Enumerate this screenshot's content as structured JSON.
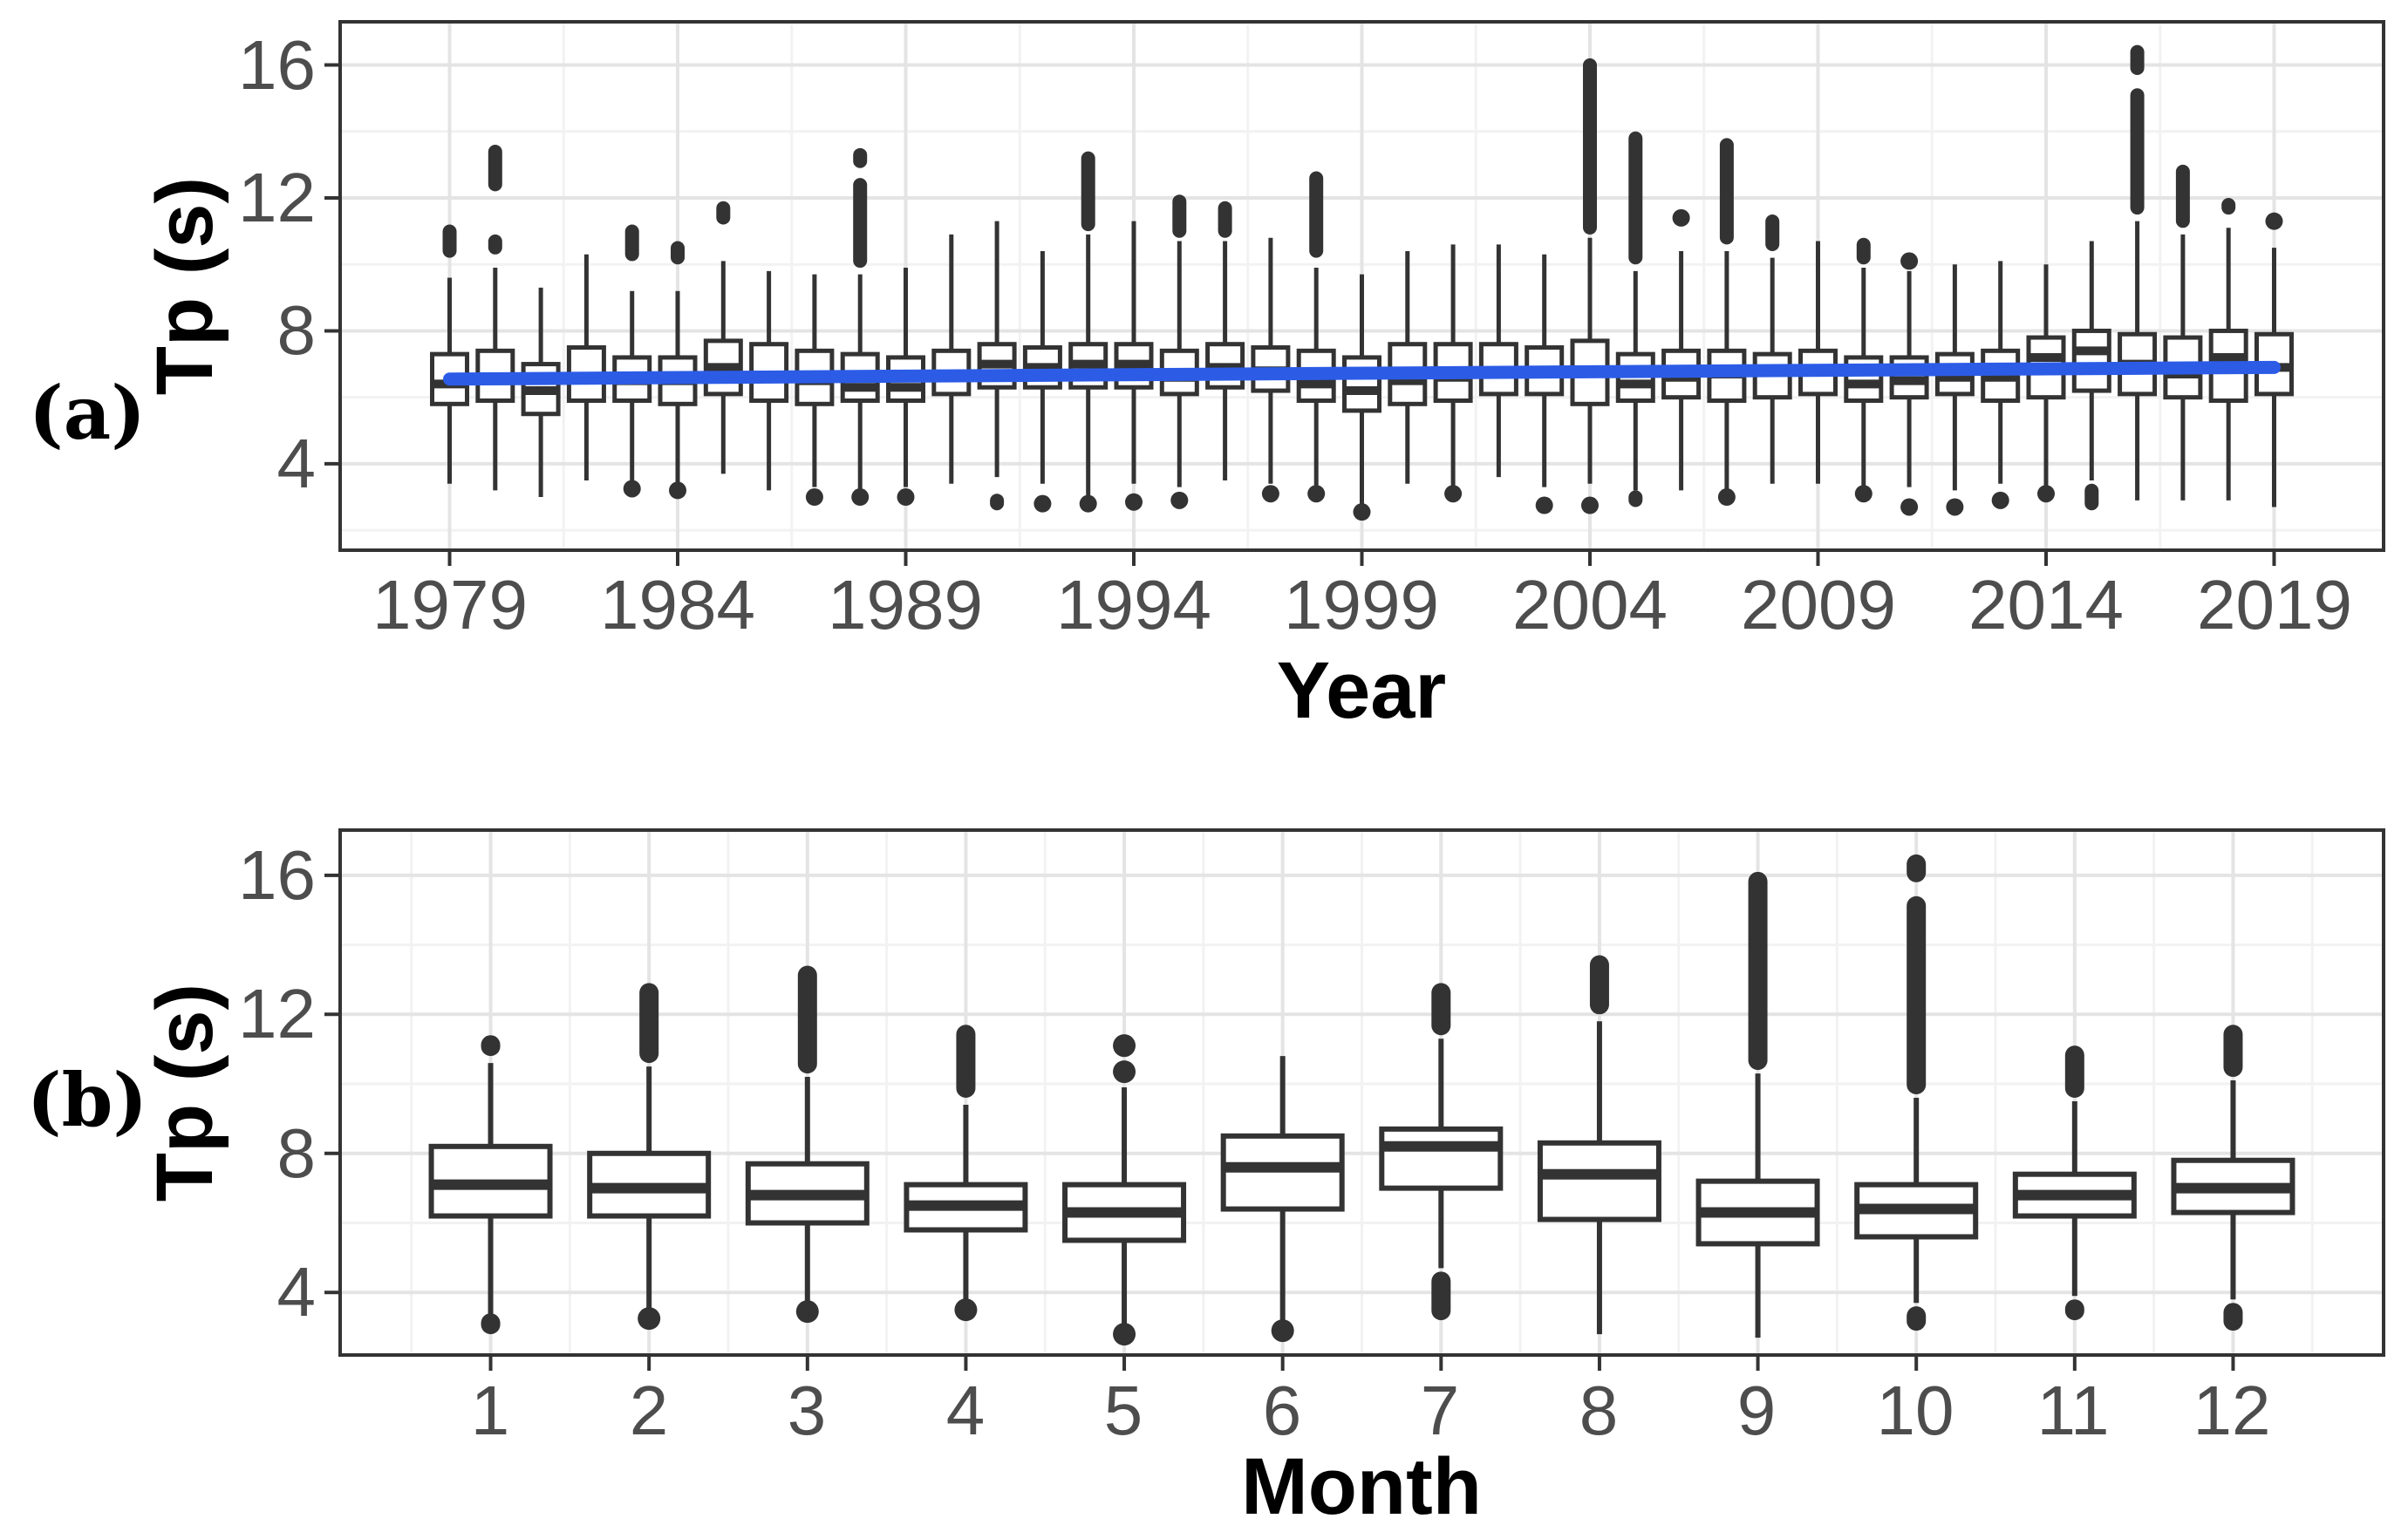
{
  "figure": {
    "background": "#FFFFFF",
    "panel_tags": {
      "a": "(a)",
      "b": "(b)"
    }
  },
  "colors": {
    "trend_blue": "#2C5CE6",
    "box_stroke": "#333333",
    "box_fill": "#FFFFFF",
    "grid_major": "#E4E4E4",
    "grid_minor": "#F2F2F2",
    "panel_border": "#333333",
    "tick_label": "#4D4D4D",
    "axis_title": "#000000"
  },
  "chart_data": [
    {
      "type": "boxplot",
      "panel": "a",
      "title": "",
      "xlabel": "Year",
      "ylabel": "Tp (s)",
      "x_axis": "continuous",
      "grid": true,
      "legend": false,
      "xlim": [
        1976.6,
        2021.4
      ],
      "ylim": [
        1.4,
        17.3
      ],
      "y_ticks": [
        16,
        12,
        8,
        4
      ],
      "y_minor_ticks": [
        14,
        10,
        6,
        2
      ],
      "x_tick_values": [
        1979,
        1984,
        1989,
        1994,
        1999,
        2004,
        2009,
        2014,
        2019
      ],
      "x_tick_labels": [
        "1979",
        "1984",
        "1989",
        "1994",
        "1999",
        "2004",
        "2009",
        "2014",
        "2019"
      ],
      "trend_line": {
        "color": "#2C5CE6",
        "x": [
          1979,
          2019
        ],
        "y": [
          6.55,
          6.9
        ]
      },
      "boxes": [
        {
          "x": 1979,
          "q1": 5.8,
          "median": 6.4,
          "q3": 7.3,
          "whisker_low": 3.4,
          "whisker_high": 9.6,
          "outliers_high": [
            [
              10.2,
              11.2
            ]
          ],
          "outliers_low": []
        },
        {
          "x": 1980,
          "q1": 5.9,
          "median": 6.5,
          "q3": 7.4,
          "whisker_low": 3.2,
          "whisker_high": 9.9,
          "outliers_high": [
            [
              10.3,
              10.9
            ],
            [
              12.2,
              13.6
            ]
          ],
          "outliers_low": []
        },
        {
          "x": 1981,
          "q1": 5.5,
          "median": 6.2,
          "q3": 7.0,
          "whisker_low": 3.0,
          "whisker_high": 9.3,
          "outliers_high": [],
          "outliers_low": []
        },
        {
          "x": 1982,
          "q1": 5.9,
          "median": 6.6,
          "q3": 7.5,
          "whisker_low": 3.5,
          "whisker_high": 10.3,
          "outliers_high": [],
          "outliers_low": []
        },
        {
          "x": 1983,
          "q1": 5.9,
          "median": 6.5,
          "q3": 7.2,
          "whisker_low": 3.3,
          "whisker_high": 9.2,
          "outliers_high": [
            [
              10.1,
              11.2
            ]
          ],
          "outliers_low": [
            [
              3.1,
              3.4
            ]
          ]
        },
        {
          "x": 1984,
          "q1": 5.8,
          "median": 6.5,
          "q3": 7.2,
          "whisker_low": 3.4,
          "whisker_high": 9.2,
          "outliers_high": [
            [
              10.0,
              10.7
            ]
          ],
          "outliers_low": [
            [
              3.1,
              3.3
            ]
          ]
        },
        {
          "x": 1985,
          "q1": 6.1,
          "median": 6.9,
          "q3": 7.7,
          "whisker_low": 3.7,
          "whisker_high": 10.1,
          "outliers_high": [
            [
              11.2,
              11.9
            ]
          ],
          "outliers_low": []
        },
        {
          "x": 1986,
          "q1": 5.9,
          "median": 6.6,
          "q3": 7.6,
          "whisker_low": 3.2,
          "whisker_high": 9.8,
          "outliers_high": [],
          "outliers_low": []
        },
        {
          "x": 1987,
          "q1": 5.8,
          "median": 6.5,
          "q3": 7.4,
          "whisker_low": 3.3,
          "whisker_high": 9.7,
          "outliers_high": [],
          "outliers_low": [
            [
              2.9,
              3.1
            ]
          ]
        },
        {
          "x": 1988,
          "q1": 5.9,
          "median": 6.3,
          "q3": 7.3,
          "whisker_low": 3.1,
          "whisker_high": 9.7,
          "outliers_high": [
            [
              9.9,
              12.6
            ],
            [
              12.9,
              13.5
            ]
          ],
          "outliers_low": [
            [
              2.9,
              3.1
            ]
          ]
        },
        {
          "x": 1989,
          "q1": 5.9,
          "median": 6.3,
          "q3": 7.2,
          "whisker_low": 3.3,
          "whisker_high": 9.9,
          "outliers_high": [],
          "outliers_low": [
            [
              2.9,
              3.1
            ]
          ]
        },
        {
          "x": 1990,
          "q1": 6.1,
          "median": 6.6,
          "q3": 7.4,
          "whisker_low": 3.4,
          "whisker_high": 10.9,
          "outliers_high": [],
          "outliers_low": []
        },
        {
          "x": 1991,
          "q1": 6.3,
          "median": 7.0,
          "q3": 7.6,
          "whisker_low": 3.6,
          "whisker_high": 11.3,
          "outliers_high": [],
          "outliers_low": [
            [
              2.6,
              3.1
            ]
          ]
        },
        {
          "x": 1992,
          "q1": 6.3,
          "median": 6.9,
          "q3": 7.5,
          "whisker_low": 3.4,
          "whisker_high": 10.4,
          "outliers_high": [],
          "outliers_low": [
            [
              2.6,
              3.0
            ]
          ]
        },
        {
          "x": 1993,
          "q1": 6.3,
          "median": 7.0,
          "q3": 7.6,
          "whisker_low": 3.0,
          "whisker_high": 10.9,
          "outliers_high": [
            [
              11.0,
              13.4
            ]
          ],
          "outliers_low": [
            [
              2.6,
              3.0
            ]
          ]
        },
        {
          "x": 1994,
          "q1": 6.3,
          "median": 7.0,
          "q3": 7.6,
          "whisker_low": 3.4,
          "whisker_high": 11.3,
          "outliers_high": [],
          "outliers_low": [
            [
              2.7,
              3.0
            ]
          ]
        },
        {
          "x": 1995,
          "q1": 6.1,
          "median": 6.6,
          "q3": 7.4,
          "whisker_low": 3.3,
          "whisker_high": 10.7,
          "outliers_high": [
            [
              10.8,
              12.1
            ]
          ],
          "outliers_low": [
            [
              2.8,
              3.0
            ]
          ]
        },
        {
          "x": 1996,
          "q1": 6.3,
          "median": 6.9,
          "q3": 7.6,
          "whisker_low": 3.5,
          "whisker_high": 10.7,
          "outliers_high": [
            [
              10.8,
              11.9
            ]
          ],
          "outliers_low": []
        },
        {
          "x": 1997,
          "q1": 6.2,
          "median": 6.8,
          "q3": 7.5,
          "whisker_low": 3.4,
          "whisker_high": 10.8,
          "outliers_high": [],
          "outliers_low": [
            [
              3.0,
              3.2
            ]
          ]
        },
        {
          "x": 1998,
          "q1": 5.9,
          "median": 6.4,
          "q3": 7.4,
          "whisker_low": 3.1,
          "whisker_high": 9.9,
          "outliers_high": [
            [
              10.2,
              12.8
            ]
          ],
          "outliers_low": [
            [
              3.0,
              3.2
            ]
          ]
        },
        {
          "x": 1999,
          "q1": 5.6,
          "median": 6.2,
          "q3": 7.2,
          "whisker_low": 2.7,
          "whisker_high": 9.7,
          "outliers_high": [],
          "outliers_low": [
            [
              2.5,
              2.6
            ]
          ]
        },
        {
          "x": 2000,
          "q1": 5.8,
          "median": 6.5,
          "q3": 7.6,
          "whisker_low": 3.4,
          "whisker_high": 10.4,
          "outliers_high": [],
          "outliers_low": []
        },
        {
          "x": 2001,
          "q1": 5.9,
          "median": 6.6,
          "q3": 7.6,
          "whisker_low": 3.3,
          "whisker_high": 10.6,
          "outliers_high": [],
          "outliers_low": [
            [
              3.0,
              3.2
            ]
          ]
        },
        {
          "x": 2002,
          "q1": 6.1,
          "median": 6.8,
          "q3": 7.6,
          "whisker_low": 3.6,
          "whisker_high": 10.6,
          "outliers_high": [],
          "outliers_low": []
        },
        {
          "x": 2003,
          "q1": 6.1,
          "median": 6.8,
          "q3": 7.5,
          "whisker_low": 3.3,
          "whisker_high": 10.3,
          "outliers_high": [],
          "outliers_low": [
            [
              2.6,
              2.9
            ]
          ]
        },
        {
          "x": 2004,
          "q1": 5.8,
          "median": 6.8,
          "q3": 7.7,
          "whisker_low": 3.4,
          "whisker_high": 10.8,
          "outliers_high": [
            [
              10.9,
              16.2
            ]
          ],
          "outliers_low": [
            [
              2.6,
              2.9
            ]
          ]
        },
        {
          "x": 2005,
          "q1": 5.9,
          "median": 6.4,
          "q3": 7.3,
          "whisker_low": 3.2,
          "whisker_high": 9.8,
          "outliers_high": [
            [
              10.0,
              14.0
            ]
          ],
          "outliers_low": [
            [
              2.7,
              3.2
            ]
          ]
        },
        {
          "x": 2006,
          "q1": 6.0,
          "median": 6.6,
          "q3": 7.4,
          "whisker_low": 3.2,
          "whisker_high": 10.4,
          "outliers_high": [
            [
              11.3,
              11.5
            ]
          ],
          "outliers_low": []
        },
        {
          "x": 2007,
          "q1": 5.9,
          "median": 6.7,
          "q3": 7.4,
          "whisker_low": 3.2,
          "whisker_high": 10.4,
          "outliers_high": [
            [
              10.6,
              13.8
            ]
          ],
          "outliers_low": [
            [
              2.9,
              3.1
            ]
          ]
        },
        {
          "x": 2008,
          "q1": 6.0,
          "median": 6.8,
          "q3": 7.3,
          "whisker_low": 3.4,
          "whisker_high": 10.2,
          "outliers_high": [
            [
              10.4,
              11.5
            ]
          ],
          "outliers_low": []
        },
        {
          "x": 2009,
          "q1": 6.1,
          "median": 6.8,
          "q3": 7.4,
          "whisker_low": 3.4,
          "whisker_high": 10.7,
          "outliers_high": [],
          "outliers_low": []
        },
        {
          "x": 2010,
          "q1": 5.9,
          "median": 6.4,
          "q3": 7.2,
          "whisker_low": 3.3,
          "whisker_high": 9.9,
          "outliers_high": [
            [
              10.0,
              10.8
            ]
          ],
          "outliers_low": [
            [
              3.0,
              3.2
            ]
          ]
        },
        {
          "x": 2011,
          "q1": 6.0,
          "median": 6.5,
          "q3": 7.2,
          "whisker_low": 3.3,
          "whisker_high": 9.8,
          "outliers_high": [
            [
              10.0,
              10.2
            ]
          ],
          "outliers_low": [
            [
              2.6,
              2.8
            ]
          ]
        },
        {
          "x": 2012,
          "q1": 6.1,
          "median": 6.6,
          "q3": 7.3,
          "whisker_low": 3.2,
          "whisker_high": 10.0,
          "outliers_high": [],
          "outliers_low": [
            [
              2.6,
              2.8
            ]
          ]
        },
        {
          "x": 2013,
          "q1": 5.9,
          "median": 6.6,
          "q3": 7.4,
          "whisker_low": 3.4,
          "whisker_high": 10.1,
          "outliers_high": [],
          "outliers_low": [
            [
              2.8,
              3.0
            ]
          ]
        },
        {
          "x": 2014,
          "q1": 6.0,
          "median": 7.2,
          "q3": 7.8,
          "whisker_low": 3.2,
          "whisker_high": 10.0,
          "outliers_high": [],
          "outliers_low": [
            [
              3.0,
              3.2
            ]
          ]
        },
        {
          "x": 2015,
          "q1": 6.2,
          "median": 7.4,
          "q3": 8.0,
          "whisker_low": 3.5,
          "whisker_high": 10.7,
          "outliers_high": [],
          "outliers_low": [
            [
              2.6,
              3.4
            ]
          ]
        },
        {
          "x": 2016,
          "q1": 6.1,
          "median": 7.0,
          "q3": 7.9,
          "whisker_low": 2.9,
          "whisker_high": 11.3,
          "outliers_high": [
            [
              11.5,
              15.3
            ],
            [
              15.7,
              16.6
            ]
          ],
          "outliers_low": []
        },
        {
          "x": 2017,
          "q1": 6.0,
          "median": 6.7,
          "q3": 7.8,
          "whisker_low": 2.9,
          "whisker_high": 10.9,
          "outliers_high": [
            [
              11.1,
              13.0
            ]
          ],
          "outliers_low": []
        },
        {
          "x": 2018,
          "q1": 5.9,
          "median": 7.2,
          "q3": 8.0,
          "whisker_low": 2.9,
          "whisker_high": 11.1,
          "outliers_high": [
            [
              11.5,
              12.0
            ]
          ],
          "outliers_low": []
        },
        {
          "x": 2019,
          "q1": 6.1,
          "median": 6.9,
          "q3": 7.9,
          "whisker_low": 2.7,
          "whisker_high": 10.5,
          "outliers_high": [
            [
              11.2,
              11.4
            ]
          ],
          "outliers_low": []
        }
      ]
    },
    {
      "type": "boxplot",
      "panel": "b",
      "title": "",
      "xlabel": "Month",
      "ylabel": "Tp (s)",
      "x_axis": "discrete",
      "grid": true,
      "legend": false,
      "ylim": [
        2.2,
        17.3
      ],
      "y_ticks": [
        16,
        12,
        8,
        4
      ],
      "y_minor_ticks": [
        14,
        10,
        6
      ],
      "x_tick_labels": [
        "1",
        "2",
        "3",
        "4",
        "5",
        "6",
        "7",
        "8",
        "9",
        "10",
        "11",
        "12"
      ],
      "boxes": [
        {
          "x": "1",
          "q1": 6.2,
          "median": 7.1,
          "q3": 8.2,
          "whisker_low": 2.9,
          "whisker_high": 10.6,
          "outliers_high": [
            [
              10.8,
              11.4
            ]
          ],
          "outliers_low": [
            [
              2.8,
              3.4
            ]
          ]
        },
        {
          "x": "2",
          "q1": 6.2,
          "median": 7.0,
          "q3": 8.0,
          "whisker_low": 3.4,
          "whisker_high": 10.5,
          "outliers_high": [
            [
              10.6,
              12.9
            ]
          ],
          "outliers_low": [
            [
              3.1,
              3.4
            ]
          ]
        },
        {
          "x": "3",
          "q1": 6.0,
          "median": 6.8,
          "q3": 7.7,
          "whisker_low": 3.6,
          "whisker_high": 10.2,
          "outliers_high": [
            [
              10.3,
              13.4
            ]
          ],
          "outliers_low": [
            [
              3.3,
              3.6
            ]
          ]
        },
        {
          "x": "4",
          "q1": 5.8,
          "median": 6.5,
          "q3": 7.1,
          "whisker_low": 3.8,
          "whisker_high": 9.4,
          "outliers_high": [
            [
              9.6,
              11.7
            ]
          ],
          "outliers_low": [
            [
              3.3,
              3.7
            ]
          ]
        },
        {
          "x": "5",
          "q1": 5.5,
          "median": 6.3,
          "q3": 7.1,
          "whisker_low": 3.0,
          "whisker_high": 9.9,
          "outliers_high": [
            [
              10.1,
              10.6
            ],
            [
              11.0,
              11.2
            ]
          ],
          "outliers_low": [
            [
              2.6,
              3.0
            ]
          ]
        },
        {
          "x": "6",
          "q1": 6.4,
          "median": 7.6,
          "q3": 8.5,
          "whisker_low": 3.1,
          "whisker_high": 10.8,
          "outliers_high": [],
          "outliers_low": [
            [
              2.8,
              3.0
            ]
          ]
        },
        {
          "x": "7",
          "q1": 7.0,
          "median": 8.2,
          "q3": 8.7,
          "whisker_low": 4.7,
          "whisker_high": 11.3,
          "outliers_high": [
            [
              11.4,
              12.9
            ]
          ],
          "outliers_low": [
            [
              3.2,
              4.6
            ]
          ]
        },
        {
          "x": "8",
          "q1": 6.1,
          "median": 7.4,
          "q3": 8.3,
          "whisker_low": 2.8,
          "whisker_high": 11.8,
          "outliers_high": [
            [
              12.0,
              13.7
            ]
          ],
          "outliers_low": []
        },
        {
          "x": "9",
          "q1": 5.4,
          "median": 6.3,
          "q3": 7.2,
          "whisker_low": 2.7,
          "whisker_high": 10.3,
          "outliers_high": [
            [
              10.4,
              16.1
            ]
          ],
          "outliers_low": []
        },
        {
          "x": "10",
          "q1": 5.6,
          "median": 6.4,
          "q3": 7.1,
          "whisker_low": 3.7,
          "whisker_high": 9.6,
          "outliers_high": [
            [
              9.7,
              15.4
            ],
            [
              15.8,
              16.6
            ]
          ],
          "outliers_low": [
            [
              2.9,
              3.6
            ]
          ]
        },
        {
          "x": "11",
          "q1": 6.2,
          "median": 6.8,
          "q3": 7.4,
          "whisker_low": 3.9,
          "whisker_high": 9.5,
          "outliers_high": [
            [
              9.6,
              11.1
            ]
          ],
          "outliers_low": [
            [
              3.2,
              3.8
            ]
          ]
        },
        {
          "x": "12",
          "q1": 6.3,
          "median": 7.0,
          "q3": 7.8,
          "whisker_low": 3.8,
          "whisker_high": 10.1,
          "outliers_high": [
            [
              10.2,
              11.7
            ]
          ],
          "outliers_low": [
            [
              2.9,
              3.7
            ]
          ]
        }
      ]
    }
  ]
}
